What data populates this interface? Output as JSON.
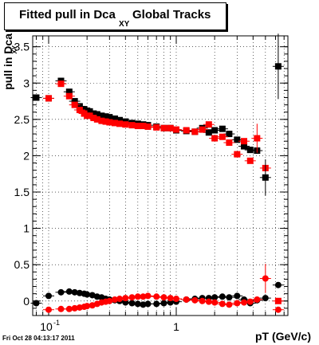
{
  "title": {
    "main": "Fitted pull in Dca",
    "subscript": "XY",
    "tail": "Global Tracks"
  },
  "footer": "Fri Oct 28 04:13:17 2011",
  "chart_data": {
    "type": "scatter",
    "xlabel": "pT (GeV/c)",
    "ylabel": "pull in Dca",
    "ylabel_sub": "XY",
    "xscale": "log",
    "xlim": [
      0.075,
      7.5
    ],
    "ylim": [
      -0.2,
      3.65
    ],
    "grid": true,
    "x_ticks": [
      {
        "value": 0.1,
        "label": "10",
        "exp": "-1"
      },
      {
        "value": 1,
        "label": "1",
        "exp": ""
      }
    ],
    "y_ticks": [
      "0",
      "0.5",
      "1",
      "1.5",
      "2",
      "2.5",
      "3",
      "3.5"
    ],
    "series": [
      {
        "color": "#000000",
        "points": [
          [
            0.08,
            2.8
          ],
          [
            0.1,
            2.79
          ],
          [
            0.125,
            3.03
          ],
          [
            0.145,
            2.88
          ],
          [
            0.16,
            2.75
          ],
          [
            0.175,
            2.68
          ],
          [
            0.19,
            2.64
          ],
          [
            0.2,
            2.62
          ],
          [
            0.21,
            2.61
          ],
          [
            0.225,
            2.58
          ],
          [
            0.24,
            2.57
          ],
          [
            0.26,
            2.55
          ],
          [
            0.28,
            2.54
          ],
          [
            0.3,
            2.53
          ],
          [
            0.33,
            2.51
          ],
          [
            0.36,
            2.49
          ],
          [
            0.4,
            2.47
          ],
          [
            0.45,
            2.45
          ],
          [
            0.5,
            2.44
          ],
          [
            0.55,
            2.43
          ],
          [
            0.6,
            2.42
          ],
          [
            0.7,
            2.4
          ],
          [
            0.8,
            2.38
          ],
          [
            0.9,
            2.38
          ],
          [
            1.0,
            2.35
          ],
          [
            1.2,
            2.34
          ],
          [
            1.4,
            2.33
          ],
          [
            1.6,
            2.38
          ],
          [
            1.8,
            2.32
          ],
          [
            2.0,
            2.35
          ],
          [
            2.3,
            2.37
          ],
          [
            2.6,
            2.3
          ],
          [
            3.0,
            2.22
          ],
          [
            3.4,
            2.13
          ],
          [
            3.8,
            2.08
          ],
          [
            4.3,
            2.07
          ],
          [
            5.0,
            1.7
          ],
          [
            6.3,
            3.23
          ]
        ],
        "low_points": [
          [
            0.08,
            -0.03
          ],
          [
            0.1,
            0.07
          ],
          [
            0.125,
            0.12
          ],
          [
            0.145,
            0.13
          ],
          [
            0.16,
            0.12
          ],
          [
            0.175,
            0.11
          ],
          [
            0.19,
            0.1
          ],
          [
            0.2,
            0.09
          ],
          [
            0.22,
            0.08
          ],
          [
            0.24,
            0.06
          ],
          [
            0.26,
            0.05
          ],
          [
            0.28,
            0.03
          ],
          [
            0.3,
            0.02
          ],
          [
            0.33,
            0.01
          ],
          [
            0.36,
            0.0
          ],
          [
            0.4,
            -0.02
          ],
          [
            0.45,
            -0.03
          ],
          [
            0.5,
            -0.04
          ],
          [
            0.55,
            -0.05
          ],
          [
            0.6,
            -0.04
          ],
          [
            0.7,
            -0.04
          ],
          [
            0.8,
            -0.03
          ],
          [
            0.9,
            -0.02
          ],
          [
            1.0,
            -0.01
          ],
          [
            1.2,
            0.02
          ],
          [
            1.4,
            0.03
          ],
          [
            1.6,
            0.04
          ],
          [
            1.8,
            0.04
          ],
          [
            2.0,
            0.05
          ],
          [
            2.3,
            0.06
          ],
          [
            2.6,
            0.05
          ],
          [
            3.0,
            0.07
          ],
          [
            3.4,
            0.02
          ],
          [
            3.8,
            -0.03
          ],
          [
            4.3,
            0.01
          ],
          [
            5.0,
            0.04
          ],
          [
            6.3,
            0.22
          ]
        ]
      },
      {
        "color": "#ff0000",
        "points": [
          [
            0.1,
            2.79
          ],
          [
            0.125,
            2.99
          ],
          [
            0.145,
            2.82
          ],
          [
            0.16,
            2.7
          ],
          [
            0.175,
            2.63
          ],
          [
            0.19,
            2.58
          ],
          [
            0.2,
            2.55
          ],
          [
            0.21,
            2.55
          ],
          [
            0.225,
            2.52
          ],
          [
            0.24,
            2.5
          ],
          [
            0.26,
            2.48
          ],
          [
            0.28,
            2.47
          ],
          [
            0.3,
            2.46
          ],
          [
            0.33,
            2.45
          ],
          [
            0.36,
            2.44
          ],
          [
            0.4,
            2.43
          ],
          [
            0.45,
            2.42
          ],
          [
            0.5,
            2.41
          ],
          [
            0.55,
            2.41
          ],
          [
            0.6,
            2.4
          ],
          [
            0.7,
            2.39
          ],
          [
            0.8,
            2.38
          ],
          [
            0.9,
            2.38
          ],
          [
            1.0,
            2.36
          ],
          [
            1.2,
            2.35
          ],
          [
            1.4,
            2.33
          ],
          [
            1.6,
            2.36
          ],
          [
            1.8,
            2.43
          ],
          [
            2.0,
            2.24
          ],
          [
            2.3,
            2.26
          ],
          [
            2.6,
            2.18
          ],
          [
            3.0,
            2.02
          ],
          [
            3.4,
            2.2
          ],
          [
            3.8,
            1.93
          ],
          [
            4.3,
            2.24
          ],
          [
            5.0,
            1.83
          ],
          [
            6.3,
            0.0
          ]
        ],
        "low_points": [
          [
            0.1,
            -0.12
          ],
          [
            0.125,
            -0.11
          ],
          [
            0.145,
            -0.11
          ],
          [
            0.16,
            -0.1
          ],
          [
            0.175,
            -0.09
          ],
          [
            0.19,
            -0.08
          ],
          [
            0.2,
            -0.07
          ],
          [
            0.22,
            -0.06
          ],
          [
            0.24,
            -0.04
          ],
          [
            0.26,
            -0.02
          ],
          [
            0.28,
            -0.01
          ],
          [
            0.3,
            0.0
          ],
          [
            0.33,
            0.02
          ],
          [
            0.36,
            0.03
          ],
          [
            0.4,
            0.04
          ],
          [
            0.45,
            0.05
          ],
          [
            0.5,
            0.06
          ],
          [
            0.55,
            0.06
          ],
          [
            0.6,
            0.07
          ],
          [
            0.7,
            0.06
          ],
          [
            0.8,
            0.05
          ],
          [
            0.9,
            0.04
          ],
          [
            1.0,
            0.03
          ],
          [
            1.2,
            0.02
          ],
          [
            1.4,
            0.01
          ],
          [
            1.6,
            0.0
          ],
          [
            1.8,
            -0.01
          ],
          [
            2.0,
            -0.02
          ],
          [
            2.3,
            -0.04
          ],
          [
            2.6,
            -0.05
          ],
          [
            3.0,
            -0.03
          ],
          [
            3.4,
            -0.02
          ],
          [
            3.8,
            -0.01
          ],
          [
            4.3,
            0.02
          ],
          [
            5.0,
            0.31
          ],
          [
            6.3,
            -0.12
          ]
        ]
      }
    ]
  }
}
